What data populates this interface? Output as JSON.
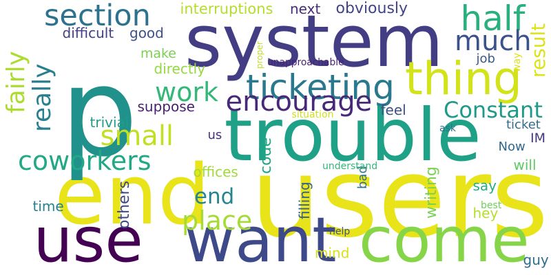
{
  "words": [
    {
      "text": "users",
      "color": "#e8e419",
      "vertical": false
    },
    {
      "text": "end",
      "color": "#e8e419",
      "vertical": false
    },
    {
      "text": "p",
      "color": "#21918c",
      "vertical": false
    },
    {
      "text": "system",
      "color": "#433d84",
      "vertical": false
    },
    {
      "text": "trouble",
      "color": "#1fa187",
      "vertical": false
    },
    {
      "text": "want",
      "color": "#3e4989",
      "vertical": false
    },
    {
      "text": "come",
      "color": "#86d549",
      "vertical": false
    },
    {
      "text": "use",
      "color": "#440154",
      "vertical": false
    },
    {
      "text": "thing",
      "color": "#d2e21b",
      "vertical": false
    },
    {
      "text": "ticketing",
      "color": "#2a788e",
      "vertical": false
    },
    {
      "text": "section",
      "color": "#2c728e",
      "vertical": false
    },
    {
      "text": "half",
      "color": "#2ab07f",
      "vertical": false
    },
    {
      "text": "much",
      "color": "#3b528b",
      "vertical": false
    },
    {
      "text": "result",
      "color": "#dde318",
      "vertical": true
    },
    {
      "text": "work",
      "color": "#35b779",
      "vertical": false
    },
    {
      "text": "encourage",
      "color": "#482878",
      "vertical": false
    },
    {
      "text": "fairly",
      "color": "#addc30",
      "vertical": true
    },
    {
      "text": "really",
      "color": "#27808e",
      "vertical": true
    },
    {
      "text": "small",
      "color": "#c2df23",
      "vertical": false
    },
    {
      "text": "Constant",
      "color": "#1f9a8a",
      "vertical": false
    },
    {
      "text": "coworkers",
      "color": "#22a884",
      "vertical": false
    },
    {
      "text": "end",
      "color": "#25848e",
      "vertical": false
    },
    {
      "text": "place",
      "color": "#a5db36",
      "vertical": false
    },
    {
      "text": "interruptions",
      "color": "#b5de2b",
      "vertical": false
    },
    {
      "text": "next",
      "color": "#472d7b",
      "vertical": false
    },
    {
      "text": "obviously",
      "color": "#414487",
      "vertical": false
    },
    {
      "text": "difficult",
      "color": "#424086",
      "vertical": false
    },
    {
      "text": "good",
      "color": "#3b528b",
      "vertical": false
    },
    {
      "text": "make",
      "color": "#7ad151",
      "vertical": false
    },
    {
      "text": "directly",
      "color": "#95d840",
      "vertical": false
    },
    {
      "text": "job",
      "color": "#38588c",
      "vertical": false
    },
    {
      "text": "suppose",
      "color": "#481f70",
      "vertical": false
    },
    {
      "text": "trivial",
      "color": "#1e9c89",
      "vertical": false
    },
    {
      "text": "feel",
      "color": "#3c508b",
      "vertical": false
    },
    {
      "text": "ticket",
      "color": "#2f6c8e",
      "vertical": false
    },
    {
      "text": "IM",
      "color": "#453781",
      "vertical": false
    },
    {
      "text": "Now",
      "color": "#31688e",
      "vertical": false
    },
    {
      "text": "us",
      "color": "#46327e",
      "vertical": false
    },
    {
      "text": "code",
      "color": "#20a486",
      "vertical": true
    },
    {
      "text": "offices",
      "color": "#9fda3a",
      "vertical": false
    },
    {
      "text": "time",
      "color": "#26828e",
      "vertical": false
    },
    {
      "text": "others",
      "color": "#3e4989",
      "vertical": true
    },
    {
      "text": "filling",
      "color": "#34608d",
      "vertical": true
    },
    {
      "text": "bad",
      "color": "#2c728e",
      "vertical": true
    },
    {
      "text": "writing",
      "color": "#7ad151",
      "vertical": true
    },
    {
      "text": "say",
      "color": "#28ae80",
      "vertical": false
    },
    {
      "text": "will",
      "color": "#5ec962",
      "vertical": false
    },
    {
      "text": "hey",
      "color": "#b5de2b",
      "vertical": false
    },
    {
      "text": "mind",
      "color": "#d8e219",
      "vertical": false
    },
    {
      "text": "guy",
      "color": "#2f6c8e",
      "vertical": false
    },
    {
      "text": "proper",
      "color": "#bddf26",
      "vertical": true
    },
    {
      "text": "unapproachable",
      "color": "#482374",
      "vertical": false
    },
    {
      "text": "situation",
      "color": "#d0e11c",
      "vertical": false
    },
    {
      "text": "ask",
      "color": "#2d708e",
      "vertical": false
    },
    {
      "text": "understand",
      "color": "#35b779",
      "vertical": false
    },
    {
      "text": "best",
      "color": "#6ece58",
      "vertical": false
    },
    {
      "text": "help",
      "color": "#3b528b",
      "vertical": false
    },
    {
      "text": "way",
      "color": "#dde318",
      "vertical": true
    }
  ]
}
